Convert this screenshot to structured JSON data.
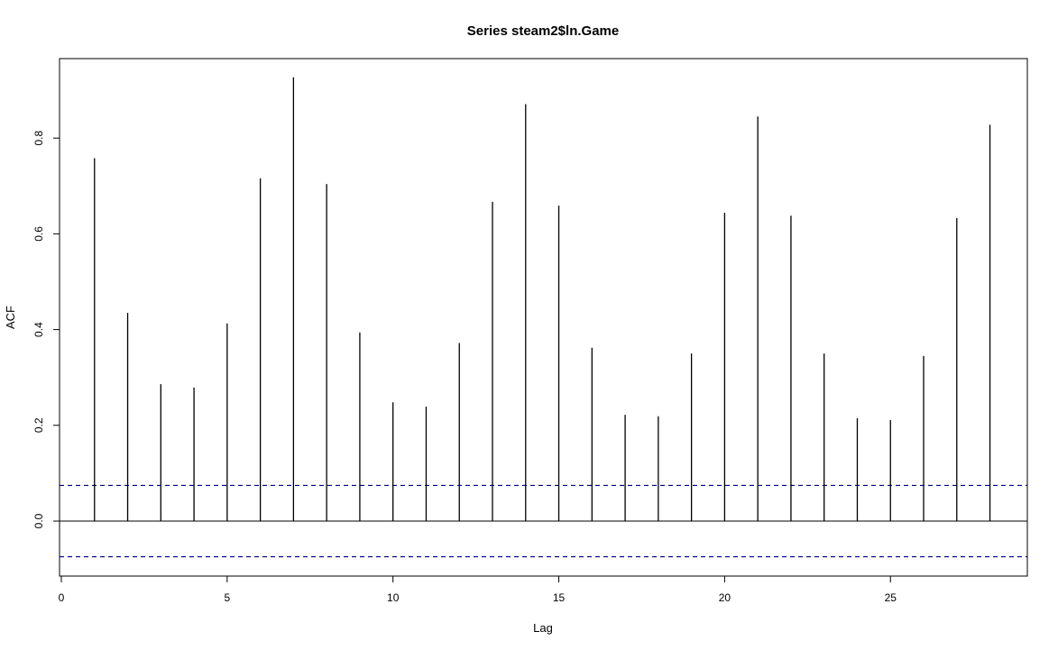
{
  "chart_data": {
    "type": "bar",
    "title": "Series steam2$ln.Game",
    "xlabel": "Lag",
    "ylabel": "ACF",
    "xlim": [
      0,
      29
    ],
    "ylim": [
      -0.115,
      0.97
    ],
    "x_ticks": [
      0,
      5,
      10,
      15,
      20,
      25
    ],
    "y_ticks": [
      0.0,
      0.2,
      0.4,
      0.6,
      0.8
    ],
    "x_tick_labels": [
      "0",
      "5",
      "10",
      "15",
      "20",
      "25"
    ],
    "y_tick_labels": [
      "0.0",
      "0.2",
      "0.4",
      "0.6",
      "0.8"
    ],
    "series": [
      {
        "lags": [
          1,
          2,
          3,
          4,
          5,
          6,
          7,
          8,
          9,
          10,
          11,
          12,
          13,
          14,
          15,
          16,
          17,
          18,
          19,
          20,
          21,
          22,
          23,
          24,
          25,
          26,
          27,
          28
        ],
        "values": [
          0.758,
          0.435,
          0.286,
          0.279,
          0.413,
          0.716,
          0.927,
          0.704,
          0.394,
          0.248,
          0.239,
          0.372,
          0.667,
          0.871,
          0.659,
          0.362,
          0.222,
          0.219,
          0.35,
          0.644,
          0.845,
          0.638,
          0.35,
          0.215,
          0.211,
          0.345,
          0.633,
          0.828
        ]
      }
    ],
    "confidence_bound": 0.0745,
    "confidence_line_color": "#00008b",
    "bar_color": "#000000",
    "grid": false
  }
}
